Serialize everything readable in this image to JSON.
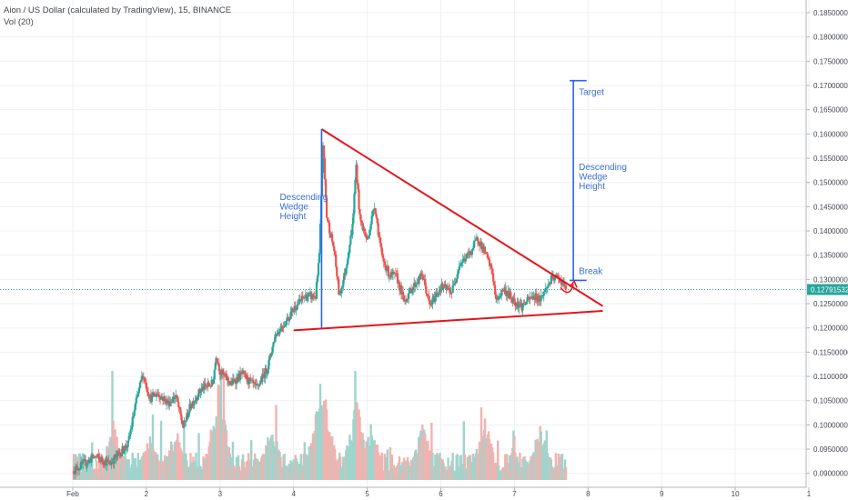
{
  "header": {
    "symbol_line": "Aion / US Dollar (calculated by TradingView), 15, BINANCE",
    "volume_label": "Vol (20)"
  },
  "colors": {
    "up": "#26a69a",
    "down": "#ef5350",
    "volume_up": "#9fd4cc",
    "volume_down": "#f2b2b0",
    "trendline": "#e5141b",
    "annotation": "#2962ff",
    "annotation_text": "#3a6fd8",
    "price_line": "#26a69a",
    "grid": "#eef0f3"
  },
  "chart_data": {
    "type": "candlestick",
    "x_tick_labels": [
      "Feb",
      "2",
      "3",
      "4",
      "5",
      "6",
      "7",
      "8",
      "9",
      "10",
      "1"
    ],
    "y_tick_labels": [
      "0.18500000",
      "0.18000000",
      "0.17500000",
      "0.17000000",
      "0.16500000",
      "0.16000000",
      "0.15500000",
      "0.15000000",
      "0.14500000",
      "0.14000000",
      "0.13500000",
      "0.13000000",
      "0.12500000",
      "0.12000000",
      "0.11500000",
      "0.11000000",
      "0.10500000",
      "0.10000000",
      "0.09500000",
      "0.09000000"
    ],
    "ylim": [
      0.0875,
      0.1875
    ],
    "current_price": "0.12791532",
    "price_path": [
      [
        0.0,
        0.0905
      ],
      [
        0.3,
        0.0935
      ],
      [
        0.5,
        0.092
      ],
      [
        0.75,
        0.096
      ],
      [
        0.85,
        0.104
      ],
      [
        0.95,
        0.1105
      ],
      [
        1.05,
        0.1055
      ],
      [
        1.15,
        0.1065
      ],
      [
        1.3,
        0.1045
      ],
      [
        1.4,
        0.106
      ],
      [
        1.5,
        0.0995
      ],
      [
        1.6,
        0.104
      ],
      [
        1.75,
        0.1075
      ],
      [
        1.9,
        0.1085
      ],
      [
        1.95,
        0.1145
      ],
      [
        2.0,
        0.111
      ],
      [
        2.15,
        0.1085
      ],
      [
        2.3,
        0.1105
      ],
      [
        2.5,
        0.1075
      ],
      [
        2.65,
        0.112
      ],
      [
        2.75,
        0.1185
      ],
      [
        2.9,
        0.1215
      ],
      [
        3.0,
        0.124
      ],
      [
        3.15,
        0.1265
      ],
      [
        3.3,
        0.1265
      ],
      [
        3.35,
        0.135
      ],
      [
        3.4,
        0.158
      ],
      [
        3.45,
        0.143
      ],
      [
        3.55,
        0.136
      ],
      [
        3.62,
        0.1265
      ],
      [
        3.7,
        0.1315
      ],
      [
        3.8,
        0.141
      ],
      [
        3.85,
        0.1535
      ],
      [
        3.9,
        0.1425
      ],
      [
        4.0,
        0.138
      ],
      [
        4.1,
        0.1455
      ],
      [
        4.15,
        0.14
      ],
      [
        4.2,
        0.1345
      ],
      [
        4.3,
        0.131
      ],
      [
        4.4,
        0.1305
      ],
      [
        4.5,
        0.1255
      ],
      [
        4.6,
        0.128
      ],
      [
        4.75,
        0.131
      ],
      [
        4.85,
        0.1245
      ],
      [
        5.0,
        0.1285
      ],
      [
        5.15,
        0.1275
      ],
      [
        5.25,
        0.133
      ],
      [
        5.4,
        0.1355
      ],
      [
        5.5,
        0.1385
      ],
      [
        5.6,
        0.1355
      ],
      [
        5.7,
        0.1315
      ],
      [
        5.75,
        0.1255
      ],
      [
        5.85,
        0.128
      ],
      [
        6.0,
        0.1255
      ],
      [
        6.1,
        0.1245
      ],
      [
        6.25,
        0.1265
      ],
      [
        6.35,
        0.126
      ],
      [
        6.5,
        0.13
      ],
      [
        6.6,
        0.1305
      ],
      [
        6.7,
        0.1279
      ]
    ],
    "volume_scale": [
      0,
      1
    ],
    "volume_base": 0.18,
    "volume_spikes": [
      {
        "x": 0.55,
        "v": 0.55
      },
      {
        "x": 1.05,
        "v": 0.45
      },
      {
        "x": 1.4,
        "v": 0.5
      },
      {
        "x": 1.98,
        "v": 0.95
      },
      {
        "x": 2.7,
        "v": 0.55
      },
      {
        "x": 3.38,
        "v": 1.0
      },
      {
        "x": 3.42,
        "v": 0.85
      },
      {
        "x": 3.85,
        "v": 0.8
      },
      {
        "x": 4.05,
        "v": 0.55
      },
      {
        "x": 4.75,
        "v": 0.55
      },
      {
        "x": 5.6,
        "v": 0.6
      },
      {
        "x": 6.35,
        "v": 0.55
      }
    ],
    "volume_end": 6.75
  },
  "drawings": {
    "upper_trendline": {
      "x1": 3.38,
      "y1": 0.161,
      "x2": 7.2,
      "y2": 0.1245
    },
    "lower_trendline": {
      "x1": 3.0,
      "y1": 0.1195,
      "x2": 7.2,
      "y2": 0.1235
    },
    "left_measure": {
      "x": 3.38,
      "y_top": 0.161,
      "y_bottom": 0.12
    },
    "right_measure": {
      "x": 6.8,
      "y_top": 0.171,
      "y_bottom": 0.1298,
      "cap_x1": 6.75,
      "cap_x2": 6.98
    },
    "left_label": [
      "Descending",
      "Wedge",
      "Height"
    ],
    "right_label": [
      "Descending",
      "Wedge",
      "Height"
    ],
    "target_label": "Target",
    "break_label": "Break"
  }
}
